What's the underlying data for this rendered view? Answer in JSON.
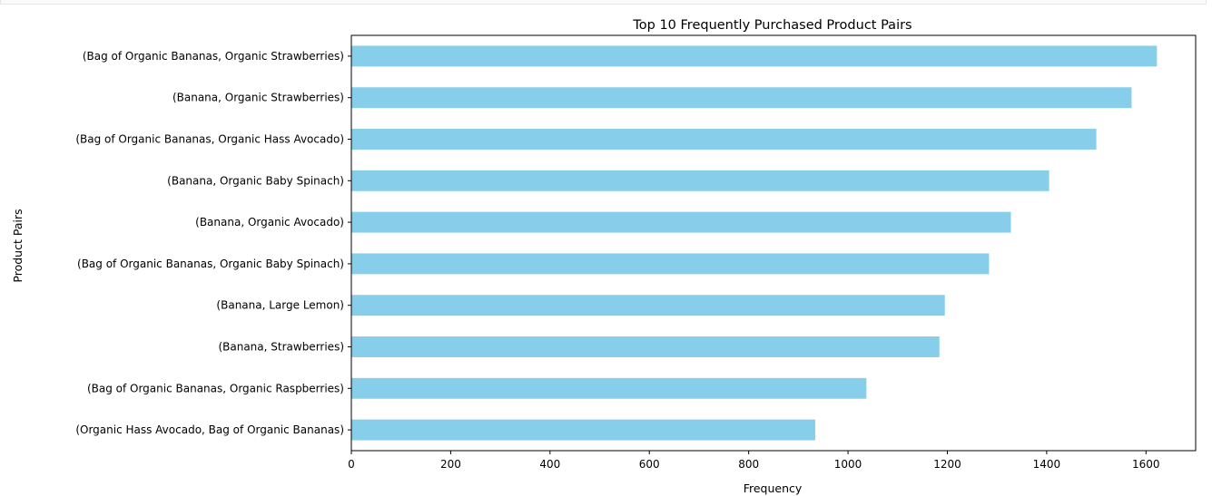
{
  "chart_data": {
    "type": "bar",
    "orientation": "horizontal",
    "title": "Top 10 Frequently Purchased Product Pairs",
    "xlabel": "Frequency",
    "ylabel": "Product Pairs",
    "xlim": [
      0,
      1700
    ],
    "x_ticks": [
      0,
      200,
      400,
      600,
      800,
      1000,
      1200,
      1400,
      1600
    ],
    "grid": false,
    "bar_color": "#87ceeb",
    "categories": [
      "(Bag of Organic Bananas, Organic Strawberries)",
      "(Banana, Organic Strawberries)",
      "(Bag of Organic Bananas, Organic Hass Avocado)",
      "(Banana, Organic Baby Spinach)",
      "(Banana, Organic Avocado)",
      "(Bag of Organic Bananas, Organic Baby Spinach)",
      "(Banana, Large Lemon)",
      "(Banana, Strawberries)",
      "(Bag of Organic Bananas, Organic Raspberries)",
      "(Organic Hass Avocado, Bag of Organic Bananas)"
    ],
    "values": [
      1622,
      1571,
      1500,
      1405,
      1328,
      1284,
      1195,
      1184,
      1037,
      934
    ]
  }
}
